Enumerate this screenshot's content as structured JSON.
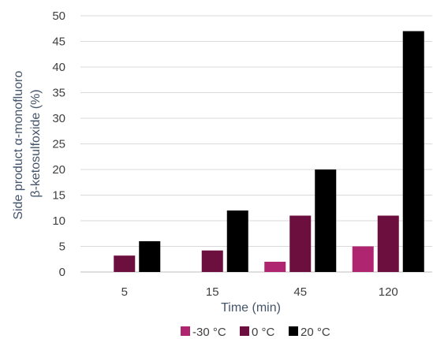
{
  "chart_data": {
    "type": "bar",
    "categories": [
      "5",
      "15",
      "45",
      "120"
    ],
    "series": [
      {
        "name": "-30 °C",
        "values": [
          0,
          0,
          2,
          5
        ],
        "color": "#b0256f"
      },
      {
        "name": "0 °C",
        "values": [
          3.2,
          4.2,
          11,
          11
        ],
        "color": "#6d0f3e"
      },
      {
        "name": "20 °C",
        "values": [
          6,
          12,
          20,
          47
        ],
        "color": "#000000"
      }
    ],
    "title": "",
    "xlabel": "Time (min)",
    "ylabel_lines": [
      "Side product α-monofluoro",
      "β-ketosulfoxide (%)"
    ],
    "ylim": [
      0,
      50
    ],
    "yticks": [
      "0",
      "5",
      "10",
      "15",
      "20",
      "25",
      "30",
      "35",
      "40",
      "45",
      "50"
    ],
    "grid": "horizontal",
    "gridline_color": "#d9d9d9",
    "legend_position": "bottom"
  }
}
